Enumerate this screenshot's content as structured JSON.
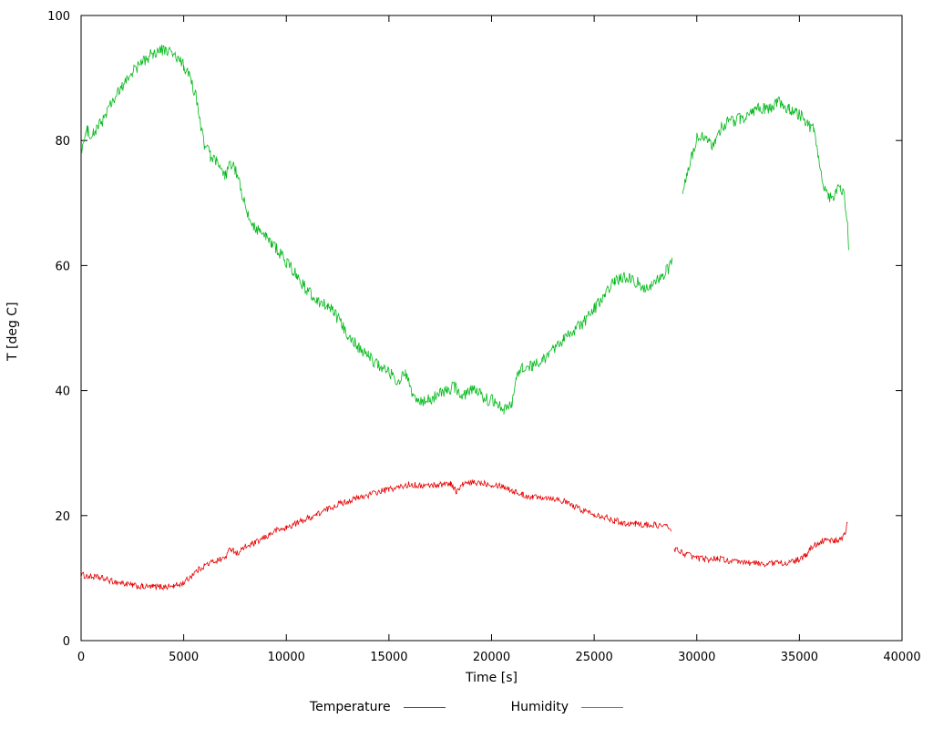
{
  "chart_data": {
    "type": "line",
    "title": "",
    "xlabel": "Time [s]",
    "ylabel": "T [deg C]",
    "xlim": [
      0,
      40000
    ],
    "ylim": [
      0,
      100
    ],
    "xticks": [
      0,
      5000,
      10000,
      15000,
      20000,
      25000,
      30000,
      35000,
      40000
    ],
    "yticks": [
      0,
      20,
      40,
      60,
      80,
      100
    ],
    "grid": false,
    "legend_position": "bottom-center",
    "frame": "box-with-mirrored-ticks",
    "background_color": "#ffffff",
    "axis_color": "#000000",
    "series": [
      {
        "name": "Temperature",
        "color": "#e60000",
        "noise": 0.5,
        "segments": [
          [
            [
              0,
              10.5
            ],
            [
              500,
              10.2
            ],
            [
              1000,
              10.0
            ],
            [
              1500,
              9.5
            ],
            [
              2000,
              9.2
            ],
            [
              2500,
              8.8
            ],
            [
              3000,
              8.6
            ],
            [
              3500,
              8.6
            ],
            [
              4000,
              8.6
            ],
            [
              4500,
              8.7
            ],
            [
              5000,
              9.2
            ],
            [
              5500,
              10.8
            ],
            [
              6000,
              12.0
            ],
            [
              6500,
              12.7
            ],
            [
              7000,
              13.2
            ],
            [
              7300,
              14.8
            ],
            [
              7600,
              14.0
            ],
            [
              8000,
              15.0
            ],
            [
              8500,
              15.6
            ],
            [
              9000,
              16.6
            ],
            [
              9500,
              17.6
            ],
            [
              10000,
              18.0
            ],
            [
              10500,
              18.8
            ],
            [
              11000,
              19.5
            ],
            [
              11500,
              20.2
            ],
            [
              12000,
              21.0
            ],
            [
              12500,
              21.8
            ],
            [
              13000,
              22.3
            ],
            [
              13500,
              22.8
            ],
            [
              14000,
              23.3
            ],
            [
              14500,
              23.8
            ],
            [
              15000,
              24.2
            ],
            [
              15500,
              24.5
            ],
            [
              16000,
              25.0
            ],
            [
              16500,
              24.8
            ],
            [
              17000,
              24.8
            ],
            [
              17500,
              25.0
            ],
            [
              18000,
              25.2
            ],
            [
              18300,
              23.8
            ],
            [
              18600,
              25.0
            ],
            [
              19000,
              25.2
            ],
            [
              19500,
              25.3
            ],
            [
              20000,
              25.0
            ],
            [
              20500,
              24.8
            ],
            [
              21000,
              24.0
            ],
            [
              21500,
              23.3
            ],
            [
              22000,
              23.0
            ],
            [
              22500,
              23.0
            ],
            [
              23000,
              22.8
            ],
            [
              23500,
              22.3
            ],
            [
              24000,
              21.5
            ],
            [
              24500,
              20.8
            ],
            [
              25000,
              20.3
            ],
            [
              25500,
              19.8
            ],
            [
              26000,
              19.2
            ],
            [
              26500,
              18.8
            ],
            [
              27000,
              18.7
            ],
            [
              27500,
              18.5
            ],
            [
              28000,
              18.5
            ],
            [
              28500,
              18.3
            ],
            [
              28750,
              17.8
            ]
          ],
          [
            [
              28900,
              14.7
            ],
            [
              29200,
              14.2
            ],
            [
              29500,
              13.8
            ],
            [
              30000,
              13.2
            ],
            [
              30500,
              13.0
            ],
            [
              31000,
              13.2
            ],
            [
              31500,
              12.8
            ],
            [
              32000,
              12.5
            ],
            [
              32500,
              12.5
            ],
            [
              33000,
              12.3
            ],
            [
              33500,
              12.3
            ],
            [
              34000,
              12.5
            ],
            [
              34500,
              12.4
            ],
            [
              35000,
              13.0
            ],
            [
              35300,
              13.5
            ],
            [
              35600,
              15.0
            ],
            [
              36000,
              15.8
            ],
            [
              36300,
              16.0
            ],
            [
              36700,
              16.0
            ],
            [
              37000,
              16.2
            ],
            [
              37200,
              16.8
            ],
            [
              37350,
              19.0
            ]
          ]
        ]
      },
      {
        "name": "Humidity",
        "color": "#00b818",
        "noise": 1.0,
        "segments": [
          [
            [
              0,
              78.5
            ],
            [
              300,
              81.5
            ],
            [
              600,
              81.0
            ],
            [
              1000,
              83.0
            ],
            [
              1500,
              86.0
            ],
            [
              2000,
              88.5
            ],
            [
              2500,
              91.0
            ],
            [
              3000,
              92.5
            ],
            [
              3500,
              94.0
            ],
            [
              4000,
              94.5
            ],
            [
              4300,
              94.3
            ],
            [
              4700,
              93.0
            ],
            [
              5000,
              92.0
            ],
            [
              5300,
              90.0
            ],
            [
              5600,
              87.0
            ],
            [
              5800,
              83.0
            ],
            [
              6000,
              79.5
            ],
            [
              6300,
              77.5
            ],
            [
              6600,
              76.5
            ],
            [
              7000,
              74.0
            ],
            [
              7200,
              76.0
            ],
            [
              7500,
              75.5
            ],
            [
              7800,
              72.0
            ],
            [
              8100,
              68.0
            ],
            [
              8400,
              66.5
            ],
            [
              8700,
              65.5
            ],
            [
              9000,
              64.5
            ],
            [
              9300,
              63.5
            ],
            [
              9600,
              62.5
            ],
            [
              10000,
              60.5
            ],
            [
              10500,
              58.5
            ],
            [
              11000,
              56.0
            ],
            [
              11500,
              54.5
            ],
            [
              12000,
              53.5
            ],
            [
              12300,
              52.5
            ],
            [
              12700,
              50.5
            ],
            [
              13000,
              49.0
            ],
            [
              13500,
              47.0
            ],
            [
              14000,
              45.5
            ],
            [
              14500,
              44.0
            ],
            [
              15000,
              43.0
            ],
            [
              15400,
              41.5
            ],
            [
              15800,
              42.5
            ],
            [
              16200,
              39.0
            ],
            [
              16600,
              38.0
            ],
            [
              17000,
              38.5
            ],
            [
              17400,
              39.5
            ],
            [
              17800,
              40.0
            ],
            [
              18200,
              40.5
            ],
            [
              18600,
              39.0
            ],
            [
              19000,
              40.5
            ],
            [
              19400,
              39.5
            ],
            [
              19800,
              38.5
            ],
            [
              20200,
              38.5
            ],
            [
              20600,
              37.0
            ],
            [
              21000,
              38.0
            ],
            [
              21200,
              42.0
            ],
            [
              21500,
              43.5
            ],
            [
              22000,
              44.0
            ],
            [
              22500,
              45.0
            ],
            [
              23000,
              46.5
            ],
            [
              23500,
              48.0
            ],
            [
              24000,
              49.5
            ],
            [
              24500,
              51.0
            ],
            [
              25000,
              53.0
            ],
            [
              25500,
              55.5
            ],
            [
              26000,
              57.5
            ],
            [
              26300,
              58.0
            ],
            [
              26700,
              58.0
            ],
            [
              27000,
              57.5
            ],
            [
              27400,
              56.5
            ],
            [
              27800,
              57.0
            ],
            [
              28200,
              58.0
            ],
            [
              28500,
              59.0
            ],
            [
              28800,
              60.5
            ]
          ],
          [
            [
              29300,
              71.5
            ],
            [
              29500,
              74.0
            ],
            [
              29800,
              78.0
            ],
            [
              30000,
              80.5
            ],
            [
              30300,
              81.0
            ],
            [
              30600,
              79.5
            ],
            [
              30900,
              79.5
            ],
            [
              31200,
              82.0
            ],
            [
              31500,
              83.0
            ],
            [
              31800,
              83.0
            ],
            [
              32100,
              83.5
            ],
            [
              32400,
              84.0
            ],
            [
              32700,
              84.5
            ],
            [
              33000,
              85.5
            ],
            [
              33300,
              85.0
            ],
            [
              33600,
              85.0
            ],
            [
              33900,
              86.0
            ],
            [
              34200,
              86.0
            ],
            [
              34500,
              85.0
            ],
            [
              34800,
              84.5
            ],
            [
              35100,
              84.0
            ],
            [
              35400,
              82.5
            ],
            [
              35700,
              82.0
            ],
            [
              35900,
              78.0
            ],
            [
              36100,
              73.5
            ],
            [
              36400,
              70.5
            ],
            [
              36700,
              71.5
            ],
            [
              37000,
              72.5
            ],
            [
              37200,
              71.0
            ],
            [
              37350,
              66.0
            ],
            [
              37400,
              62.0
            ]
          ]
        ]
      }
    ]
  }
}
